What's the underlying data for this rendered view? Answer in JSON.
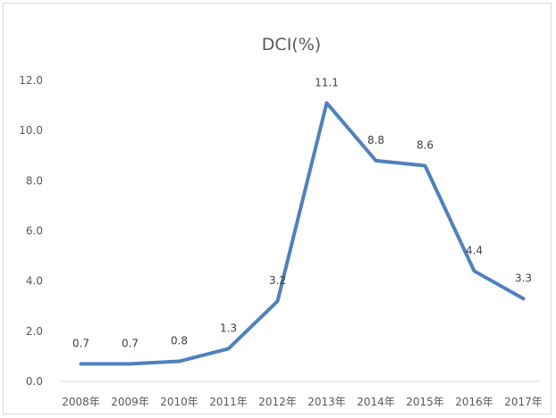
{
  "chart_data": {
    "type": "line",
    "title": "DCI(%)",
    "categories": [
      "2008年",
      "2009年",
      "2010年",
      "2011年",
      "2012年",
      "2013年",
      "2014年",
      "2015年",
      "2016年",
      "2017年"
    ],
    "series": [
      {
        "values": [
          0.7,
          0.7,
          0.8,
          1.3,
          3.2,
          11.1,
          8.8,
          8.6,
          4.4,
          3.3
        ],
        "data_labels": [
          "0.7",
          "0.7",
          "0.8",
          "1.3",
          "3.2",
          "11.1",
          "8.8",
          "8.6",
          "4.4",
          "3.3"
        ],
        "color": "#4f81bd"
      }
    ],
    "ylim": [
      0,
      12
    ],
    "yticks": [
      0,
      2,
      4,
      6,
      8,
      10,
      12
    ],
    "ytick_labels": [
      "0.0",
      "2.0",
      "4.0",
      "6.0",
      "8.0",
      "10.0",
      "12.0"
    ],
    "grid": false,
    "legend": "none"
  }
}
